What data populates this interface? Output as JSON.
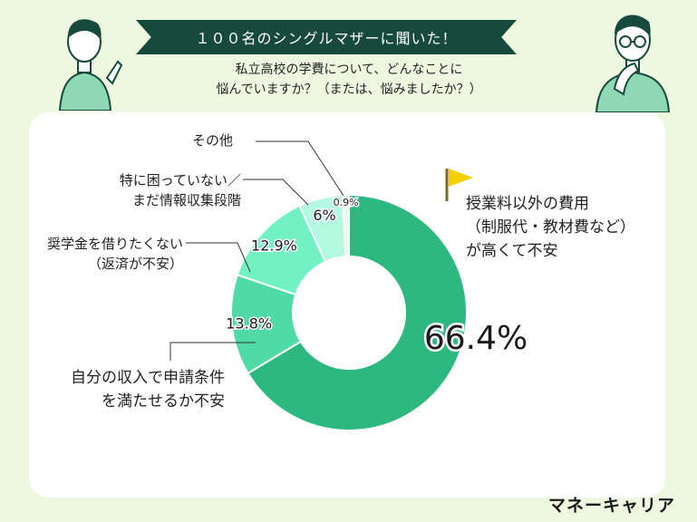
{
  "banner": "１００名のシングルマザーに聞いた！",
  "question": [
    "私立高校の学費について、どんなことに",
    "悩んでいますか？（または、悩みましたか？）"
  ],
  "brand": "マネーキャリア",
  "chart_data": {
    "type": "pie",
    "donut": true,
    "slices": [
      {
        "label_lines": [
          "授業料以外の費用",
          "（制服代・教材費など）",
          "が高くて不安"
        ],
        "value": 66.4,
        "value_label": "66.4%",
        "color": "#2db880"
      },
      {
        "label_lines": [
          "自分の収入で申請条件",
          "を満たせるか不安"
        ],
        "value": 13.8,
        "value_label": "13.8%",
        "color": "#4fdaa6"
      },
      {
        "label_lines": [
          "奨学金を借りたくない",
          "（返済が不安）"
        ],
        "value": 12.9,
        "value_label": "12.9%",
        "color": "#72f2c4"
      },
      {
        "label_lines": [
          "特に困っていない／",
          "まだ情報収集段階"
        ],
        "value": 6,
        "value_label": "6%",
        "color": "#b3fae0"
      },
      {
        "label_lines": [
          "その他"
        ],
        "value": 0.9,
        "value_label": "0.9%",
        "color": "#eaf6ee"
      }
    ]
  }
}
